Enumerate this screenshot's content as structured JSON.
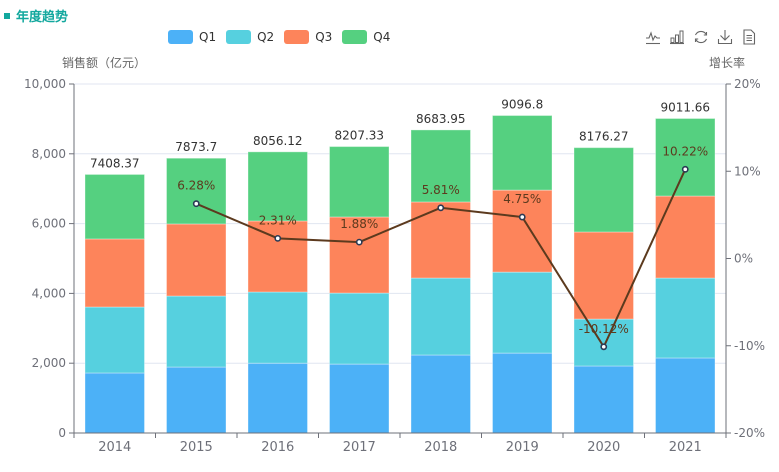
{
  "header": {
    "title": "年度趋势"
  },
  "toolbox": [
    {
      "name": "line-chart-icon",
      "title": "切换为折线图"
    },
    {
      "name": "bar-chart-icon",
      "title": "切换为柱状图"
    },
    {
      "name": "restore-icon",
      "title": "还原"
    },
    {
      "name": "download-icon",
      "title": "保存为图片"
    },
    {
      "name": "data-view-icon",
      "title": "数据视图"
    }
  ],
  "chart_data": {
    "type": "bar",
    "title": "年度趋势",
    "categories": [
      "2014",
      "2015",
      "2016",
      "2017",
      "2018",
      "2019",
      "2020",
      "2021"
    ],
    "series": [
      {
        "name": "Q1",
        "type": "bar",
        "stack": "total",
        "color": "#4cb1f7",
        "values": [
          1720,
          1890,
          2000,
          1975,
          2235,
          2290,
          1920,
          2150
        ]
      },
      {
        "name": "Q2",
        "type": "bar",
        "stack": "total",
        "color": "#56d0df",
        "values": [
          1890,
          2035,
          2040,
          2035,
          2205,
          2320,
          1345,
          2290
        ]
      },
      {
        "name": "Q3",
        "type": "bar",
        "stack": "total",
        "color": "#fd845b",
        "values": [
          1950,
          2065,
          2035,
          2180,
          2180,
          2350,
          2495,
          2350
        ]
      },
      {
        "name": "Q4",
        "type": "bar",
        "stack": "total",
        "color": "#55d080",
        "values": [
          1848.37,
          1883.7,
          1981.12,
          2017.33,
          2063.95,
          2136.8,
          2416.27,
          2221.66
        ]
      },
      {
        "name": "增长率",
        "type": "line",
        "yAxis": "right",
        "color": "#5c3a1e",
        "values": [
          null,
          6.28,
          2.31,
          1.88,
          5.81,
          4.75,
          -10.12,
          10.22
        ],
        "labels": [
          "",
          "6.28%",
          "2.31%",
          "1.88%",
          "5.81%",
          "4.75%",
          "-10.12%",
          "10.22%"
        ]
      }
    ],
    "totals": [
      7408.37,
      7873.7,
      8056.12,
      8207.33,
      8683.95,
      9096.8,
      8176.27,
      9011.66
    ],
    "total_labels": [
      "7408.37",
      "7873.7",
      "8056.12",
      "8207.33",
      "8683.95",
      "9096.8",
      "8176.27",
      "9011.66"
    ],
    "ylabel": "销售额（亿元）",
    "ylabel_right": "增长率",
    "ylim": [
      0,
      10000
    ],
    "ylim_right": [
      -20,
      20
    ],
    "yticks": [
      "0",
      "2,000",
      "4,000",
      "6,000",
      "8,000",
      "10,000"
    ],
    "yticks_right": [
      "-20%",
      "-10%",
      "0%",
      "10%",
      "20%"
    ],
    "legend": [
      "Q1",
      "Q2",
      "Q3",
      "Q4"
    ],
    "legend_position": "top-center",
    "grid": true
  }
}
